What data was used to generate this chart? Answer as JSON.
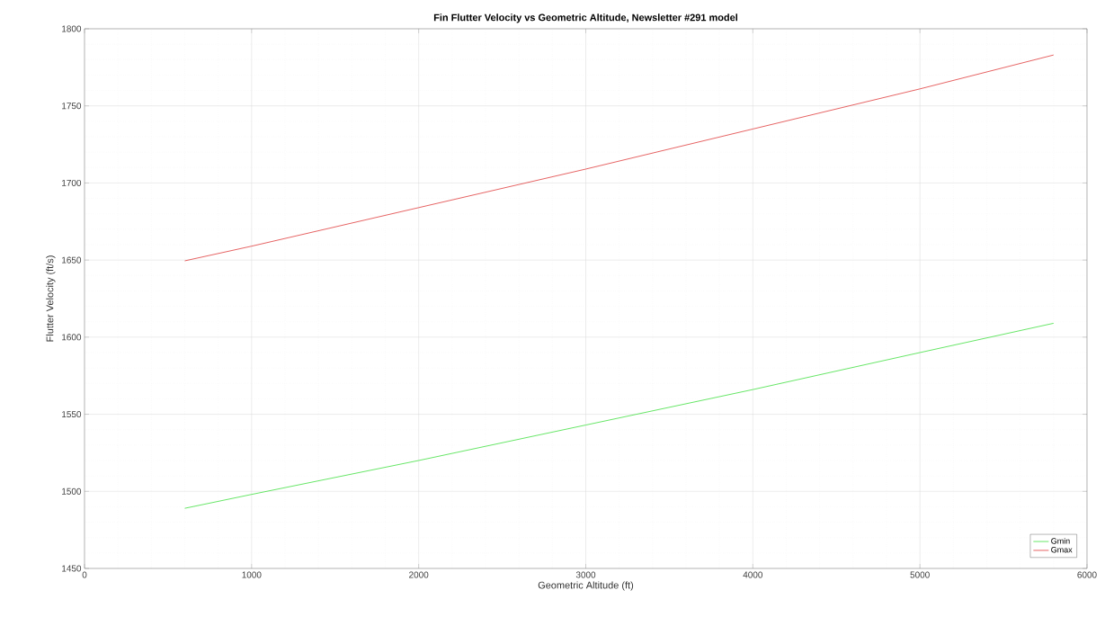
{
  "chart_data": {
    "type": "line",
    "title": "Fin Flutter Velocity vs Geometric Altitude, Newsletter #291 model",
    "xlabel": "Geometric Altitude (ft)",
    "ylabel": "Flutter Velocity (ft/s)",
    "x": [
      600,
      1000,
      2000,
      3000,
      4000,
      5000,
      5800
    ],
    "series": [
      {
        "name": "Gmin",
        "color": "#40e040",
        "values": [
          1489,
          1498,
          1520,
          1543,
          1566,
          1590,
          1609
        ]
      },
      {
        "name": "Gmax",
        "color": "#e03c3c",
        "values": [
          1649.5,
          1659,
          1684,
          1709,
          1735,
          1761,
          1783
        ]
      }
    ],
    "xlim": [
      0,
      6000
    ],
    "xticks": [
      0,
      1000,
      2000,
      3000,
      4000,
      5000,
      6000
    ],
    "ylim": [
      1450,
      1800
    ],
    "yticks": [
      1450,
      1500,
      1550,
      1600,
      1650,
      1700,
      1750,
      1800
    ],
    "grid": true,
    "legend": "bottom right",
    "marker": "none",
    "line_style": "solid"
  }
}
